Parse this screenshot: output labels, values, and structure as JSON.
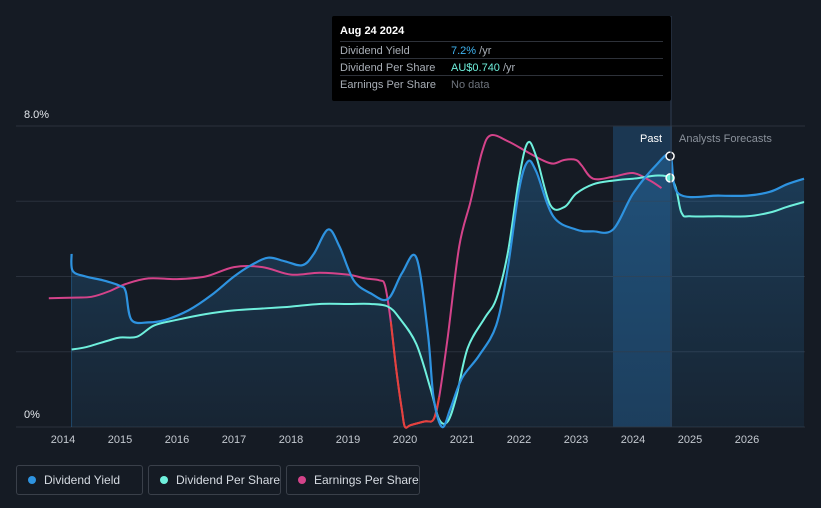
{
  "tooltip": {
    "date": "Aug 24 2024",
    "rows": [
      {
        "label": "Dividend Yield",
        "value": "7.2%",
        "unit": " /yr"
      },
      {
        "label": "Dividend Per Share",
        "value": "AU$0.740",
        "unit": " /yr"
      },
      {
        "label": "Earnings Per Share",
        "value": "No data",
        "unit": ""
      }
    ]
  },
  "legend": [
    {
      "label": "Dividend Yield",
      "color": "#2e93e0"
    },
    {
      "label": "Dividend Per Share",
      "color": "#6ff0dd"
    },
    {
      "label": "Earnings Per Share",
      "color": "#d4438a"
    }
  ],
  "colors": {
    "background": "#151b24",
    "dividend_yield": "#2e93e0",
    "dividend_per_share": "#6ff0dd",
    "earnings_per_share": "#d4438a",
    "earnings_negative": "#e5423c"
  },
  "chart_data": {
    "type": "line",
    "title": "",
    "xlabel": "",
    "ylabel": "",
    "y_labels": [
      "8.0%",
      "0%"
    ],
    "x_ticks": [
      "2014",
      "2015",
      "2016",
      "2017",
      "2018",
      "2019",
      "2020",
      "2021",
      "2022",
      "2023",
      "2024",
      "2025",
      "2026"
    ],
    "xlim": [
      2013.6,
      2027.0
    ],
    "ylim": [
      0,
      8.0
    ],
    "grid": true,
    "regions": {
      "past_label": "Past",
      "forecast_label": "Analysts Forecasts",
      "past_shade_start": 2023.65,
      "divider": 2024.65
    },
    "series": [
      {
        "name": "Dividend Yield",
        "unit": "%",
        "points": [
          [
            2014.15,
            4.6
          ],
          [
            2014.17,
            4.15
          ],
          [
            2014.4,
            4.0
          ],
          [
            2014.7,
            3.9
          ],
          [
            2015.0,
            3.75
          ],
          [
            2015.1,
            3.6
          ],
          [
            2015.2,
            2.85
          ],
          [
            2015.5,
            2.78
          ],
          [
            2015.8,
            2.85
          ],
          [
            2016.2,
            3.1
          ],
          [
            2016.6,
            3.5
          ],
          [
            2017.0,
            4.0
          ],
          [
            2017.3,
            4.3
          ],
          [
            2017.6,
            4.5
          ],
          [
            2017.9,
            4.4
          ],
          [
            2018.2,
            4.3
          ],
          [
            2018.4,
            4.6
          ],
          [
            2018.65,
            5.25
          ],
          [
            2018.85,
            4.8
          ],
          [
            2019.1,
            3.9
          ],
          [
            2019.4,
            3.55
          ],
          [
            2019.7,
            3.4
          ],
          [
            2019.95,
            4.1
          ],
          [
            2020.2,
            4.5
          ],
          [
            2020.4,
            2.5
          ],
          [
            2020.5,
            0.8
          ],
          [
            2020.65,
            0.0
          ],
          [
            2020.8,
            0.5
          ],
          [
            2021.0,
            1.3
          ],
          [
            2021.3,
            1.9
          ],
          [
            2021.6,
            2.7
          ],
          [
            2021.8,
            4.2
          ],
          [
            2022.0,
            6.3
          ],
          [
            2022.15,
            7.05
          ],
          [
            2022.3,
            6.8
          ],
          [
            2022.6,
            5.6
          ],
          [
            2023.0,
            5.25
          ],
          [
            2023.3,
            5.2
          ],
          [
            2023.65,
            5.25
          ],
          [
            2024.0,
            6.2
          ],
          [
            2024.4,
            6.95
          ],
          [
            2024.65,
            7.2
          ],
          [
            2024.8,
            6.2
          ],
          [
            2025.5,
            6.15
          ],
          [
            2026.0,
            6.15
          ],
          [
            2026.4,
            6.25
          ],
          [
            2026.7,
            6.45
          ],
          [
            2027.0,
            6.6
          ]
        ]
      },
      {
        "name": "Dividend Per Share",
        "unit": "AU$",
        "points": [
          [
            2014.15,
            2.06
          ],
          [
            2014.4,
            2.12
          ],
          [
            2014.8,
            2.3
          ],
          [
            2015.0,
            2.38
          ],
          [
            2015.3,
            2.4
          ],
          [
            2015.6,
            2.7
          ],
          [
            2016.0,
            2.85
          ],
          [
            2016.5,
            3.0
          ],
          [
            2017.0,
            3.1
          ],
          [
            2017.5,
            3.15
          ],
          [
            2018.0,
            3.2
          ],
          [
            2018.5,
            3.27
          ],
          [
            2019.0,
            3.27
          ],
          [
            2019.4,
            3.27
          ],
          [
            2019.7,
            3.2
          ],
          [
            2019.9,
            2.9
          ],
          [
            2020.2,
            2.2
          ],
          [
            2020.45,
            1.0
          ],
          [
            2020.6,
            0.2
          ],
          [
            2020.75,
            0.15
          ],
          [
            2020.9,
            0.8
          ],
          [
            2021.1,
            2.1
          ],
          [
            2021.4,
            2.9
          ],
          [
            2021.6,
            3.4
          ],
          [
            2021.8,
            4.6
          ],
          [
            2022.0,
            6.6
          ],
          [
            2022.15,
            7.55
          ],
          [
            2022.3,
            7.2
          ],
          [
            2022.55,
            5.9
          ],
          [
            2022.8,
            5.85
          ],
          [
            2023.0,
            6.2
          ],
          [
            2023.3,
            6.45
          ],
          [
            2023.65,
            6.55
          ],
          [
            2024.0,
            6.6
          ],
          [
            2024.65,
            6.62
          ],
          [
            2024.85,
            5.7
          ],
          [
            2025.0,
            5.6
          ],
          [
            2025.5,
            5.6
          ],
          [
            2026.0,
            5.6
          ],
          [
            2026.4,
            5.7
          ],
          [
            2026.7,
            5.85
          ],
          [
            2027.0,
            5.98
          ]
        ]
      },
      {
        "name": "Earnings Per Share",
        "unit": "AU$",
        "points": [
          [
            2013.75,
            3.42
          ],
          [
            2014.2,
            3.44
          ],
          [
            2014.5,
            3.46
          ],
          [
            2014.8,
            3.6
          ],
          [
            2015.1,
            3.8
          ],
          [
            2015.5,
            3.95
          ],
          [
            2016.0,
            3.93
          ],
          [
            2016.5,
            4.0
          ],
          [
            2017.0,
            4.25
          ],
          [
            2017.5,
            4.25
          ],
          [
            2018.0,
            4.05
          ],
          [
            2018.5,
            4.1
          ],
          [
            2019.0,
            4.05
          ],
          [
            2019.3,
            3.95
          ],
          [
            2019.55,
            3.9
          ],
          [
            2019.65,
            3.75
          ],
          [
            2019.75,
            2.8
          ],
          [
            2019.85,
            1.5
          ],
          [
            2019.95,
            0.4
          ],
          [
            2020.0,
            0.0
          ],
          [
            2020.1,
            0.05
          ],
          [
            2020.35,
            0.15
          ],
          [
            2020.5,
            0.2
          ],
          [
            2020.6,
            0.8
          ],
          [
            2020.75,
            2.4
          ],
          [
            2020.95,
            4.8
          ],
          [
            2021.15,
            6.0
          ],
          [
            2021.35,
            7.3
          ],
          [
            2021.5,
            7.75
          ],
          [
            2021.8,
            7.6
          ],
          [
            2022.1,
            7.35
          ],
          [
            2022.4,
            7.1
          ],
          [
            2022.6,
            7.0
          ],
          [
            2022.8,
            7.1
          ],
          [
            2023.0,
            7.1
          ],
          [
            2023.1,
            6.95
          ],
          [
            2023.3,
            6.6
          ],
          [
            2023.65,
            6.65
          ],
          [
            2024.0,
            6.75
          ],
          [
            2024.3,
            6.55
          ],
          [
            2024.5,
            6.35
          ]
        ]
      }
    ]
  }
}
